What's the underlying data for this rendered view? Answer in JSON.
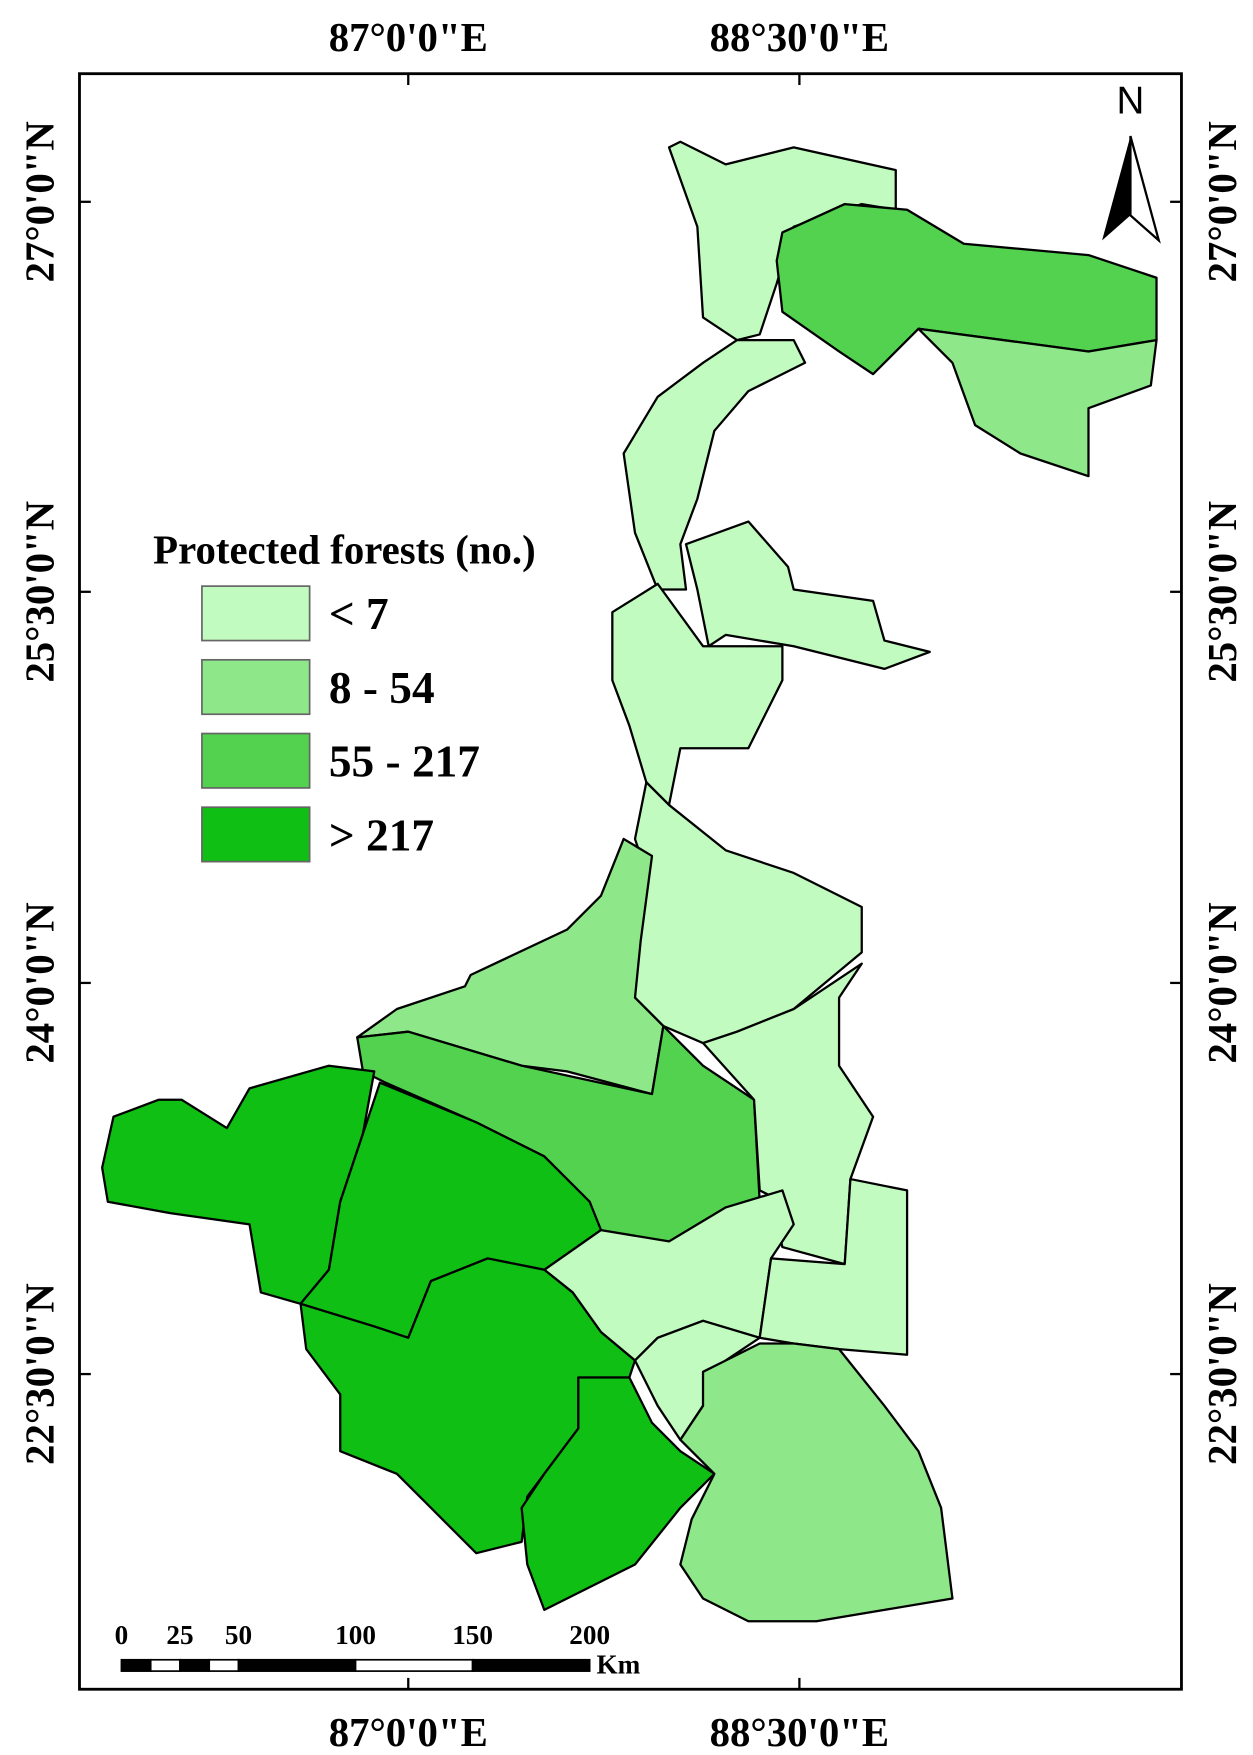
{
  "map": {
    "longitude_labels": [
      "87°0'0\"E",
      "88°30'0\"E"
    ],
    "latitude_labels": [
      "27°0'0\"N",
      "25°30'0\"N",
      "24°0'0\"N",
      "22°30'0\"N"
    ],
    "north_label": "N",
    "legend": {
      "title": "Protected forests (no.)",
      "items": [
        {
          "label": "< 7",
          "color": "#c2fbc0"
        },
        {
          "label": "8 - 54",
          "color": "#8ee88a"
        },
        {
          "label": "55 - 217",
          "color": "#52d24f"
        },
        {
          "label": "> 217",
          "color": "#0fbf13"
        }
      ]
    },
    "scale_bar": {
      "ticks": [
        0,
        25,
        50,
        100,
        150,
        200
      ],
      "unit": "Km"
    }
  }
}
